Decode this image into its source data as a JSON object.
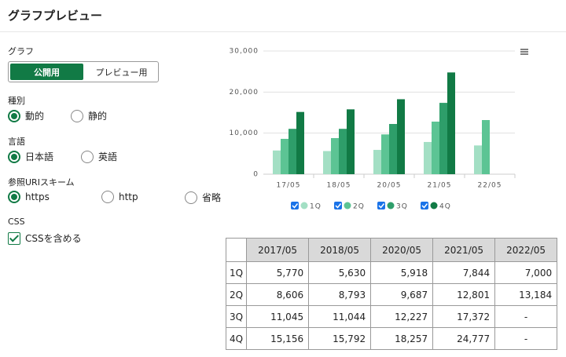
{
  "header": {
    "title": "グラフプレビュー"
  },
  "form": {
    "graph": {
      "label": "グラフ",
      "buttons": [
        "公開用",
        "プレビュー用"
      ],
      "active": 0
    },
    "groups": [
      {
        "label": "種別",
        "options": [
          "動的",
          "静的"
        ],
        "selected": 0
      },
      {
        "label": "言語",
        "options": [
          "日本語",
          "英語"
        ],
        "selected": 0
      },
      {
        "label": "参照URIスキーム",
        "options": [
          "https",
          "http",
          "省略"
        ],
        "selected": 0
      }
    ],
    "css": {
      "label": "CSS",
      "option": "CSSを含める",
      "checked": true
    }
  },
  "chart_data": {
    "type": "bar",
    "categories": [
      "17/05",
      "18/05",
      "20/05",
      "21/05",
      "22/05"
    ],
    "series": [
      {
        "name": "1Q",
        "color": "#a3dfc4",
        "values": [
          5770,
          5630,
          5918,
          7844,
          7000
        ]
      },
      {
        "name": "2Q",
        "color": "#5cc494",
        "values": [
          8606,
          8793,
          9687,
          12801,
          13184
        ]
      },
      {
        "name": "3Q",
        "color": "#2e9e6a",
        "values": [
          11045,
          11044,
          12227,
          17372,
          null
        ]
      },
      {
        "name": "4Q",
        "color": "#117a45",
        "values": [
          15156,
          15792,
          18257,
          24777,
          null
        ]
      }
    ],
    "ylim": [
      0,
      30000
    ],
    "yticks": [
      0,
      {
        "value": 10000,
        "label": "10,000"
      },
      {
        "value": 20000,
        "label": "20,000"
      },
      {
        "value": 30000,
        "label": "30,000"
      }
    ],
    "grid": true
  },
  "table": {
    "columns": [
      "2017/05",
      "2018/05",
      "2020/05",
      "2021/05",
      "2022/05"
    ],
    "rows": [
      {
        "label": "1Q",
        "cells": [
          "5,770",
          "5,630",
          "5,918",
          "7,844",
          "7,000"
        ]
      },
      {
        "label": "2Q",
        "cells": [
          "8,606",
          "8,793",
          "9,687",
          "12,801",
          "13,184"
        ]
      },
      {
        "label": "3Q",
        "cells": [
          "11,045",
          "11,044",
          "12,227",
          "17,372",
          "-"
        ]
      },
      {
        "label": "4Q",
        "cells": [
          "15,156",
          "15,792",
          "18,257",
          "24,777",
          "-"
        ]
      }
    ]
  }
}
